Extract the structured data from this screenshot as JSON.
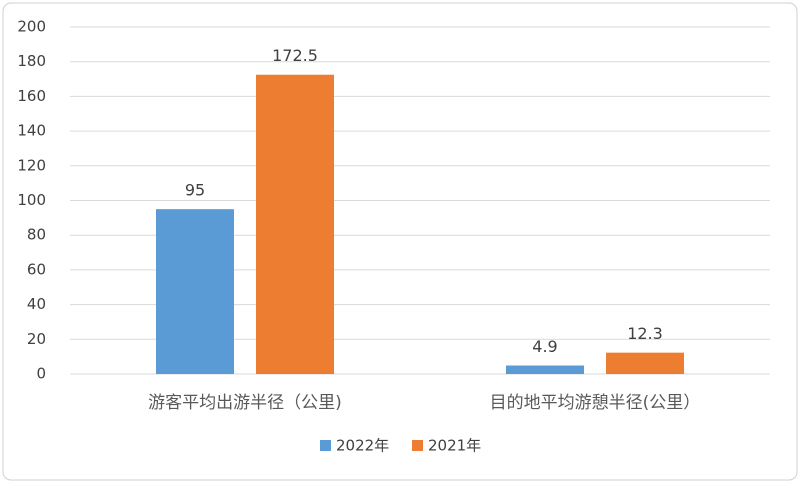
{
  "chart_data": {
    "type": "bar",
    "categories": [
      "游客平均出游半径（公里)",
      "目的地平均游憩半径(公里）"
    ],
    "series": [
      {
        "name": "2022年",
        "color": "#5b9bd5",
        "values": [
          95,
          4.9
        ]
      },
      {
        "name": "2021年",
        "color": "#ed7d31",
        "values": [
          172.5,
          12.3
        ]
      }
    ],
    "ylim": [
      0,
      200
    ],
    "yticks": [
      0,
      20,
      40,
      60,
      80,
      100,
      120,
      140,
      160,
      180,
      200
    ],
    "grid": true,
    "legend": "bottom"
  }
}
